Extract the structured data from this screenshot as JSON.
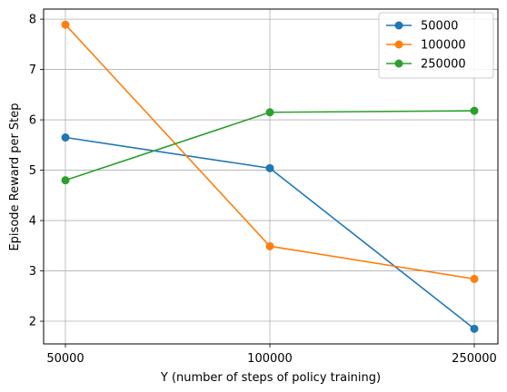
{
  "chart_data": {
    "type": "line",
    "categories": [
      "50000",
      "100000",
      "250000"
    ],
    "series": [
      {
        "name": "50000",
        "color": "#1f77b4",
        "values": [
          5.65,
          5.04,
          1.85
        ]
      },
      {
        "name": "100000",
        "color": "#ff7f0e",
        "values": [
          7.89,
          3.49,
          2.84
        ]
      },
      {
        "name": "250000",
        "color": "#2ca02c",
        "values": [
          4.8,
          6.15,
          6.18
        ]
      }
    ],
    "title": "",
    "xlabel": "Y (number of steps of policy training)",
    "ylabel": "Episode Reward per Step",
    "ylim": [
      1.55,
      8.2
    ],
    "yticks": [
      2,
      3,
      4,
      5,
      6,
      7,
      8
    ],
    "grid": true,
    "legend_position": "top-right",
    "marker": "circle"
  }
}
